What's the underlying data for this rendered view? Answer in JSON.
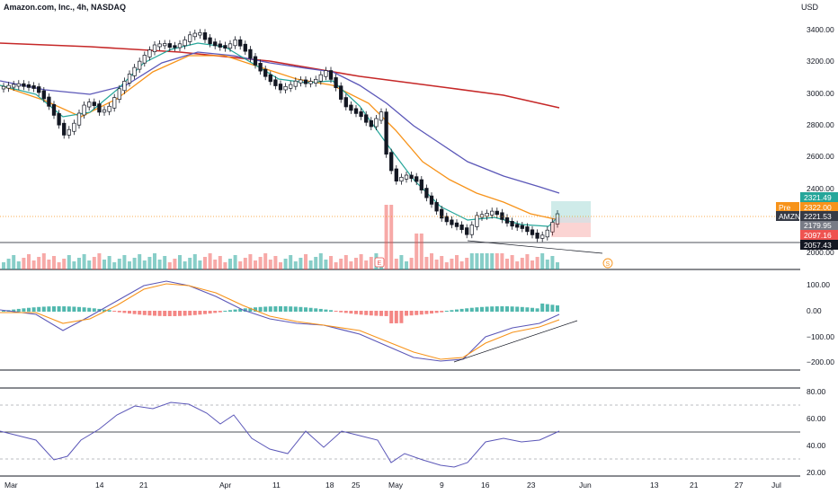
{
  "header": {
    "symbol_title": "Amazon.com, Inc., 4h, NASDAQ",
    "currency": "USD"
  },
  "colors": {
    "up": "#26a69a",
    "down": "#ef5350",
    "ma_fast": "#26a69a",
    "ma_mid": "#f7931a",
    "ma_slow": "#5b57b8",
    "ma_long": "#c62828",
    "candle_up_body": "#ffffff",
    "candle_ink": "#131722"
  },
  "price_axis": {
    "ticks": [
      "3400.00",
      "3200.00",
      "3000.00",
      "2800.00",
      "2600.00",
      "2400.00",
      "2000.00"
    ]
  },
  "price_tags": [
    {
      "label": "",
      "value": "2321.49",
      "color": "#26a69a"
    },
    {
      "label": "Pre",
      "value": "2322.00",
      "color": "#f7931a"
    },
    {
      "label": "",
      "value": "2179.95",
      "color": "#787b86"
    },
    {
      "label": "AMZN",
      "value": "2221.53",
      "color": "#363a45"
    },
    {
      "label": "",
      "value": "2097.16",
      "color": "#ef5350"
    },
    {
      "label": "",
      "value": "2057.43",
      "color": "#131722"
    }
  ],
  "macd_axis": {
    "ticks": [
      "100.00",
      "0.00",
      "−100.00",
      "−200.00"
    ]
  },
  "rsi_axis": {
    "ticks": [
      "80.00",
      "60.00",
      "40.00",
      "20.00"
    ]
  },
  "time_axis": {
    "labels": [
      "Mar",
      "14",
      "21",
      "Apr",
      "11",
      "18",
      "25",
      "May",
      "9",
      "16",
      "23",
      "Jun",
      "13",
      "21",
      "27",
      "Jul"
    ]
  },
  "markers": {
    "earnings": "E",
    "dividend": "S"
  }
}
